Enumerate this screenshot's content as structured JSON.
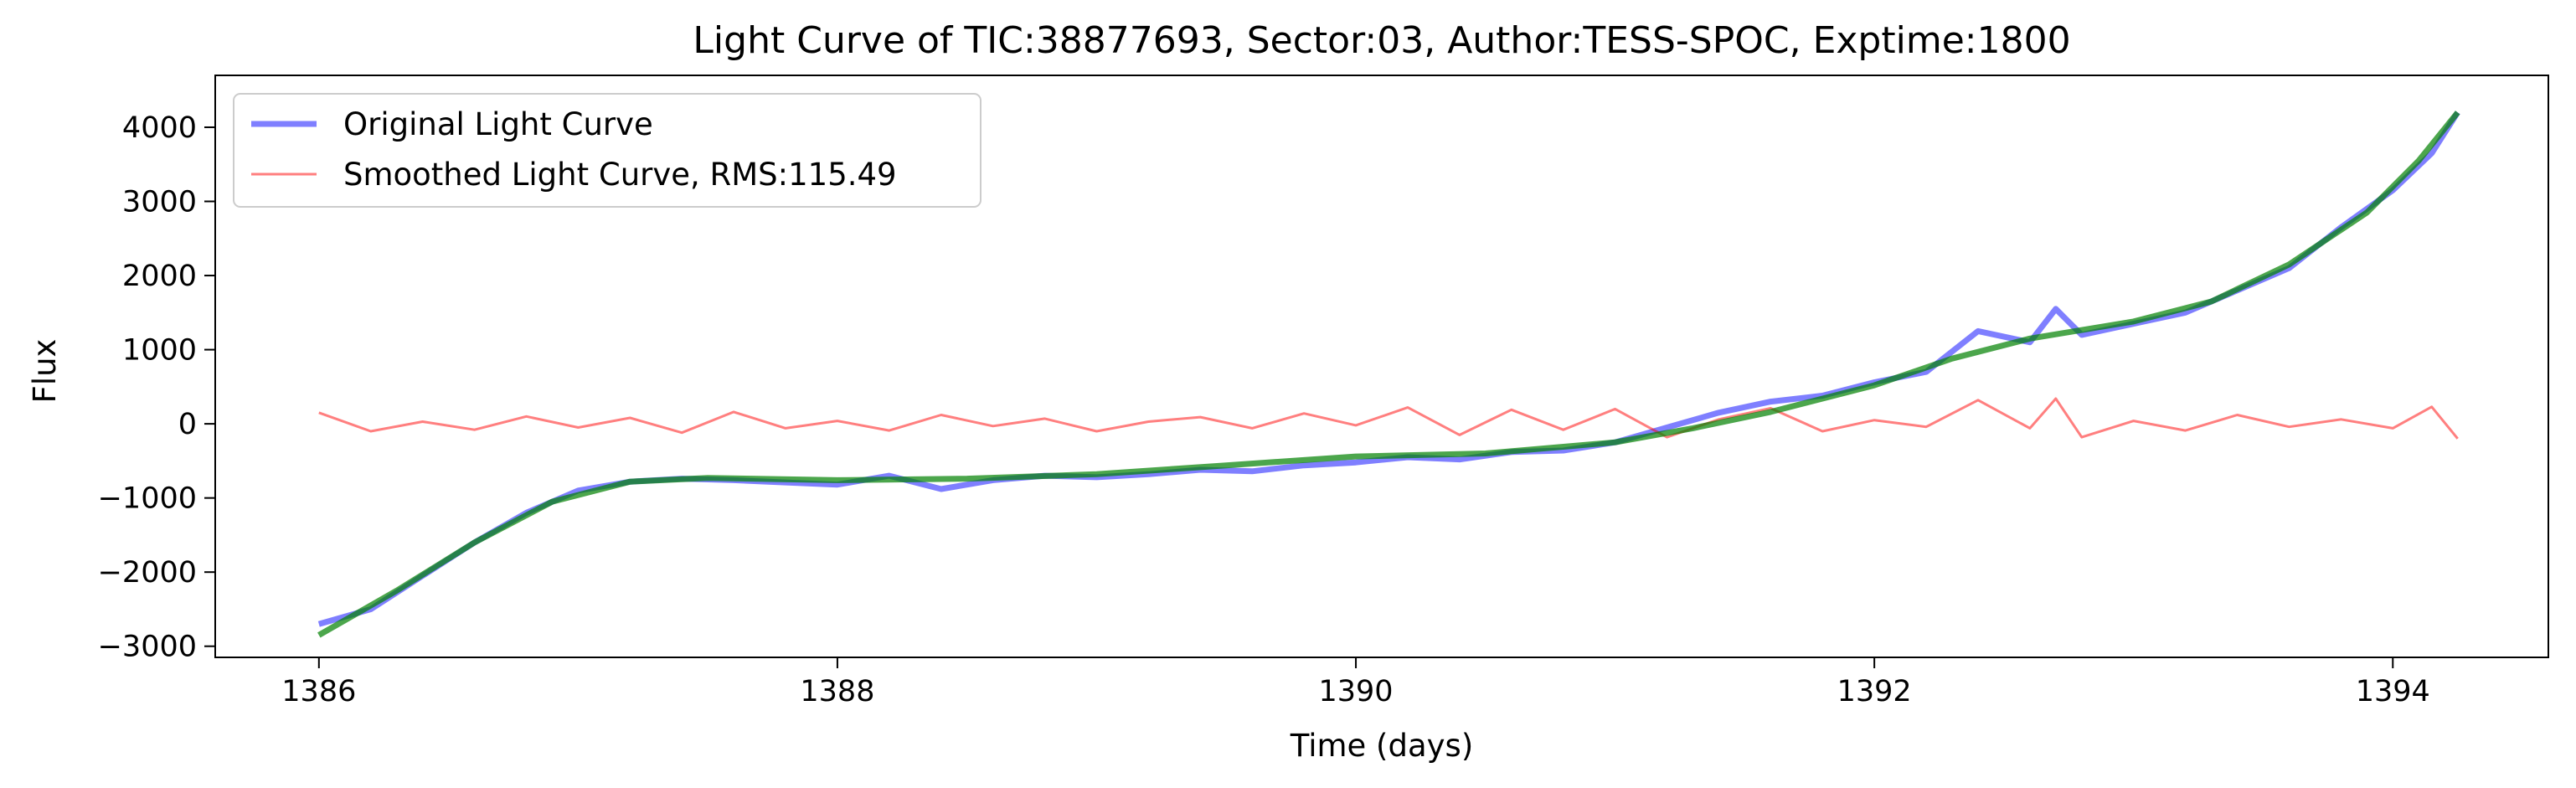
{
  "chart_data": {
    "type": "line",
    "title": "Light Curve of TIC:38877693, Sector:03, Author:TESS-SPOC, Exptime:1800",
    "xlabel": "Time (days)",
    "ylabel": "Flux",
    "xlim": [
      1385.6,
      1394.6
    ],
    "ylim": [
      -3150,
      4700
    ],
    "xticks": [
      1386,
      1388,
      1390,
      1392,
      1394
    ],
    "xtick_labels": [
      "1386",
      "1388",
      "1390",
      "1392",
      "1394"
    ],
    "yticks": [
      -3000,
      -2000,
      -1000,
      0,
      1000,
      2000,
      3000,
      4000
    ],
    "ytick_labels": [
      "−3000",
      "−2000",
      "−1000",
      "0",
      "1000",
      "2000",
      "3000",
      "4000"
    ],
    "grid": false,
    "legend_position": "top-left",
    "series": [
      {
        "name": "Original Light Curve",
        "color": "#0000ff",
        "opacity": 0.5,
        "line_width_class": "thick",
        "x": [
          1386.0,
          1386.2,
          1386.4,
          1386.6,
          1386.8,
          1387.0,
          1387.2,
          1387.4,
          1387.6,
          1387.8,
          1388.0,
          1388.2,
          1388.4,
          1388.6,
          1388.8,
          1389.0,
          1389.2,
          1389.4,
          1389.6,
          1389.8,
          1390.0,
          1390.2,
          1390.4,
          1390.6,
          1390.8,
          1391.0,
          1391.2,
          1391.4,
          1391.6,
          1391.8,
          1392.0,
          1392.2,
          1392.4,
          1392.6,
          1392.7,
          1392.8,
          1393.0,
          1393.2,
          1393.4,
          1393.6,
          1393.8,
          1394.0,
          1394.15,
          1394.25
        ],
        "y": [
          -2700,
          -2500,
          -2050,
          -1600,
          -1200,
          -900,
          -780,
          -740,
          -760,
          -790,
          -820,
          -700,
          -880,
          -760,
          -700,
          -720,
          -680,
          -620,
          -640,
          -560,
          -520,
          -450,
          -480,
          -380,
          -360,
          -250,
          -50,
          150,
          300,
          380,
          560,
          700,
          1250,
          1100,
          1550,
          1200,
          1350,
          1500,
          1800,
          2100,
          2650,
          3150,
          3650,
          4200
        ]
      },
      {
        "name": "Smoothed Light Curve, RMS:115.49",
        "color": "#ff0000",
        "opacity": 0.5,
        "line_width_class": "thin",
        "x": [
          1386.0,
          1386.2,
          1386.4,
          1386.6,
          1386.8,
          1387.0,
          1387.2,
          1387.4,
          1387.6,
          1387.8,
          1388.0,
          1388.2,
          1388.4,
          1388.6,
          1388.8,
          1389.0,
          1389.2,
          1389.4,
          1389.6,
          1389.8,
          1390.0,
          1390.2,
          1390.4,
          1390.6,
          1390.8,
          1391.0,
          1391.2,
          1391.4,
          1391.6,
          1391.8,
          1392.0,
          1392.2,
          1392.4,
          1392.6,
          1392.7,
          1392.8,
          1393.0,
          1393.2,
          1393.4,
          1393.6,
          1393.8,
          1394.0,
          1394.15,
          1394.25
        ],
        "y": [
          150,
          -100,
          30,
          -80,
          100,
          -50,
          80,
          -120,
          160,
          -60,
          40,
          -90,
          120,
          -30,
          70,
          -100,
          30,
          90,
          -60,
          140,
          -20,
          220,
          -150,
          190,
          -80,
          200,
          -180,
          60,
          210,
          -100,
          50,
          -40,
          320,
          -60,
          340,
          -180,
          40,
          -90,
          120,
          -40,
          60,
          -60,
          230,
          -200
        ]
      },
      {
        "name": "",
        "color": "#008000",
        "opacity": 0.7,
        "line_width_class": "thick",
        "x": [
          1386.0,
          1386.3,
          1386.6,
          1386.9,
          1387.2,
          1387.5,
          1388.0,
          1388.5,
          1389.0,
          1389.5,
          1390.0,
          1390.5,
          1391.0,
          1391.3,
          1391.6,
          1392.0,
          1392.3,
          1392.6,
          1393.0,
          1393.3,
          1393.6,
          1393.9,
          1394.1,
          1394.25
        ],
        "y": [
          -2850,
          -2250,
          -1600,
          -1050,
          -780,
          -730,
          -760,
          -740,
          -680,
          -560,
          -440,
          -400,
          -250,
          -60,
          160,
          520,
          880,
          1150,
          1380,
          1650,
          2150,
          2850,
          3550,
          4200
        ]
      }
    ]
  }
}
